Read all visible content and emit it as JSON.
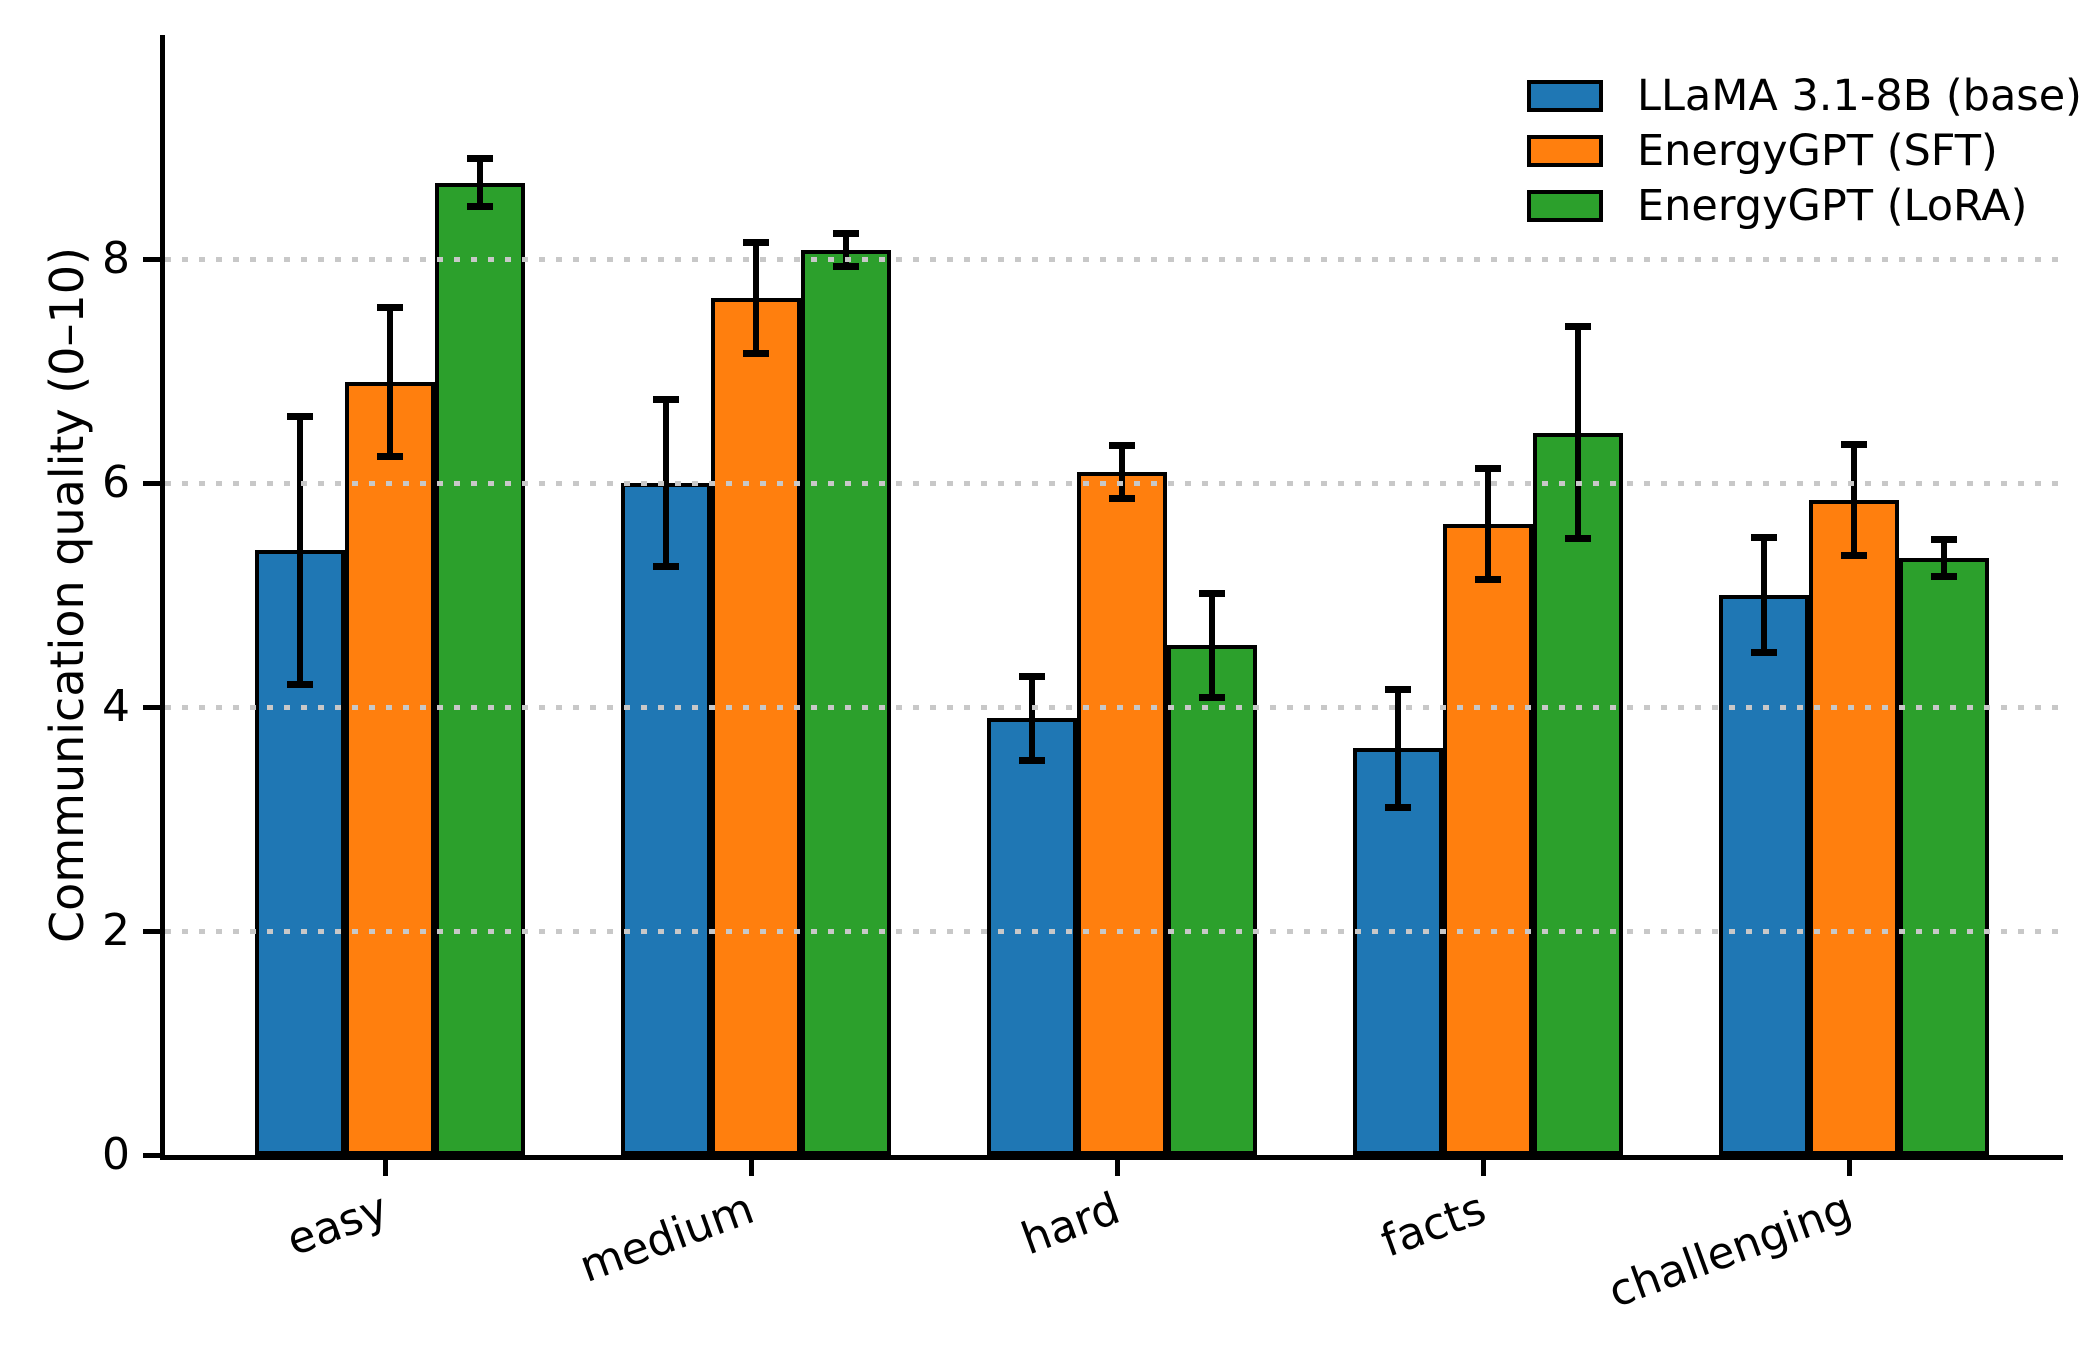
{
  "chart_data": {
    "type": "bar",
    "title": "",
    "xlabel": "",
    "ylabel": "Communication quality (0–10)",
    "categories": [
      "easy",
      "medium",
      "hard",
      "facts",
      "challenging"
    ],
    "series": [
      {
        "name": "LLaMA 3.1-8B (base)",
        "color": "#1f77b4",
        "values": [
          5.4,
          6.0,
          3.9,
          3.63,
          5.0
        ],
        "errors": [
          1.2,
          0.75,
          0.38,
          0.53,
          0.52
        ]
      },
      {
        "name": "EnergyGPT (SFT)",
        "color": "#ff7f0e",
        "values": [
          6.9,
          7.65,
          6.1,
          5.63,
          5.85
        ],
        "errors": [
          0.67,
          0.5,
          0.24,
          0.5,
          0.5
        ]
      },
      {
        "name": "EnergyGPT (LoRA)",
        "color": "#2ca02c",
        "values": [
          8.68,
          8.08,
          4.55,
          6.45,
          5.33
        ],
        "errors": [
          0.22,
          0.15,
          0.47,
          0.95,
          0.17
        ]
      }
    ],
    "yticks": [
      0,
      2,
      4,
      6,
      8
    ],
    "ylim": [
      0,
      10
    ],
    "grid": "horizontal-dotted-above-bars",
    "grid_color": "#c8c8c8",
    "bar_edge_color": "#000000",
    "error_bar_color": "#000000",
    "legend_position": "upper right",
    "background_color": "#ffffff"
  }
}
